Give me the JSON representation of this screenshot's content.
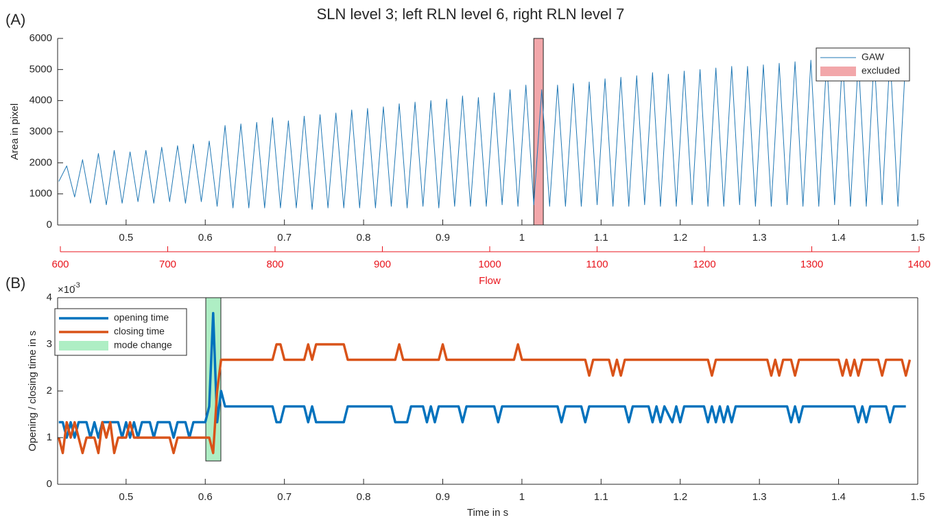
{
  "chart_data": [
    {
      "type": "line",
      "panel_label": "(A)",
      "title": "SLN level 3; left RLN level 6, right RLN level 7",
      "ylabel": "Area in pixel",
      "xlim": [
        0.4135,
        1.5
      ],
      "xticks": [
        0.5,
        0.6,
        0.7,
        0.8,
        0.9,
        1,
        1.1,
        1.2,
        1.3,
        1.4,
        1.5
      ],
      "ylim": [
        0,
        6000
      ],
      "yticks": [
        0,
        1000,
        2000,
        3000,
        4000,
        5000,
        6000
      ],
      "x2label": "Flow",
      "x2lim": [
        600,
        1400
      ],
      "x2ticks": [
        600,
        700,
        800,
        900,
        1000,
        1100,
        1200,
        1300,
        1400
      ],
      "x2color": "#e8141c",
      "legend": "upper right",
      "series": [
        {
          "name": "GAW",
          "color": "#1f77b4",
          "x": [
            0.415,
            0.425,
            0.435,
            0.445,
            0.455,
            0.465,
            0.475,
            0.485,
            0.495,
            0.505,
            0.515,
            0.525,
            0.535,
            0.545,
            0.555,
            0.565,
            0.575,
            0.585,
            0.595,
            0.605,
            0.615,
            0.625,
            0.635,
            0.645,
            0.655,
            0.665,
            0.675,
            0.685,
            0.695,
            0.705,
            0.715,
            0.725,
            0.735,
            0.745,
            0.755,
            0.765,
            0.775,
            0.785,
            0.795,
            0.805,
            0.815,
            0.825,
            0.835,
            0.845,
            0.855,
            0.865,
            0.875,
            0.885,
            0.895,
            0.905,
            0.915,
            0.925,
            0.935,
            0.945,
            0.955,
            0.965,
            0.975,
            0.985,
            0.995,
            1.005,
            1.015,
            1.025,
            1.035,
            1.045,
            1.055,
            1.065,
            1.075,
            1.085,
            1.095,
            1.105,
            1.115,
            1.125,
            1.135,
            1.145,
            1.155,
            1.165,
            1.175,
            1.185,
            1.195,
            1.205,
            1.215,
            1.225,
            1.235,
            1.245,
            1.255,
            1.265,
            1.275,
            1.285,
            1.295,
            1.305,
            1.315,
            1.325,
            1.335,
            1.345,
            1.355,
            1.365,
            1.375,
            1.385,
            1.395,
            1.405,
            1.415,
            1.425,
            1.435,
            1.445,
            1.455,
            1.465,
            1.475,
            1.485
          ],
          "values": [
            1400,
            1900,
            900,
            2100,
            700,
            2300,
            650,
            2400,
            700,
            2350,
            750,
            2400,
            700,
            2500,
            750,
            2550,
            700,
            2600,
            750,
            2700,
            600,
            3200,
            550,
            3250,
            550,
            3300,
            550,
            3450,
            550,
            3350,
            550,
            3500,
            500,
            3550,
            550,
            3600,
            550,
            3700,
            550,
            3750,
            550,
            3800,
            600,
            3900,
            550,
            3950,
            600,
            4000,
            550,
            4050,
            600,
            4150,
            600,
            4100,
            600,
            4250,
            650,
            4350,
            600,
            4500,
            650,
            4350,
            600,
            4500,
            600,
            4550,
            600,
            4600,
            650,
            4700,
            600,
            4750,
            600,
            4800,
            650,
            4900,
            600,
            4850,
            600,
            4950,
            650,
            5000,
            600,
            5050,
            600,
            5100,
            650,
            5100,
            600,
            5150,
            600,
            5200,
            650,
            5250,
            600,
            5300,
            600,
            5350,
            650,
            5400,
            600,
            5350,
            600,
            5450,
            650,
            5500,
            600,
            5500
          ]
        }
      ],
      "shaded_regions": [
        {
          "name": "excluded",
          "color": "#f2a7aa",
          "x": [
            1.015,
            1.027
          ]
        }
      ]
    },
    {
      "type": "line",
      "panel_label": "(B)",
      "xlabel": "Time in s",
      "ylabel": "Opening / closing time in s",
      "y_scale_label": "×10",
      "y_scale_exponent": "-3",
      "xlim": [
        0.4135,
        1.5
      ],
      "xticks": [
        0.5,
        0.6,
        0.7,
        0.8,
        0.9,
        1,
        1.1,
        1.2,
        1.3,
        1.4,
        1.5
      ],
      "ylim": [
        0,
        4
      ],
      "yticks": [
        0,
        1,
        2,
        3,
        4
      ],
      "legend": "upper left",
      "series": [
        {
          "name": "opening time",
          "color": "#0072bd",
          "x": [
            0.415,
            0.42,
            0.425,
            0.43,
            0.435,
            0.44,
            0.45,
            0.455,
            0.46,
            0.465,
            0.47,
            0.49,
            0.495,
            0.5,
            0.505,
            0.51,
            0.515,
            0.52,
            0.53,
            0.535,
            0.54,
            0.555,
            0.56,
            0.565,
            0.575,
            0.58,
            0.585,
            0.6,
            0.605,
            0.61,
            0.615,
            0.62,
            0.625,
            0.685,
            0.69,
            0.695,
            0.7,
            0.725,
            0.73,
            0.735,
            0.74,
            0.775,
            0.78,
            0.835,
            0.84,
            0.855,
            0.86,
            0.875,
            0.88,
            0.885,
            0.89,
            0.895,
            0.92,
            0.925,
            0.93,
            0.965,
            0.97,
            0.975,
            1.045,
            1.05,
            1.055,
            1.075,
            1.08,
            1.085,
            1.13,
            1.135,
            1.14,
            1.16,
            1.165,
            1.17,
            1.175,
            1.18,
            1.19,
            1.195,
            1.2,
            1.205,
            1.23,
            1.235,
            1.24,
            1.245,
            1.25,
            1.255,
            1.26,
            1.265,
            1.27,
            1.335,
            1.34,
            1.345,
            1.35,
            1.355,
            1.42,
            1.425,
            1.43,
            1.435,
            1.44,
            1.46,
            1.465,
            1.47,
            1.485
          ],
          "values": [
            1.33,
            1.33,
            1,
            1.33,
            1,
            1.33,
            1.33,
            1,
            1.33,
            1,
            1.33,
            1.33,
            1,
            1.33,
            1,
            1.33,
            1,
            1.33,
            1.33,
            1,
            1.33,
            1.33,
            1,
            1.33,
            1.33,
            1,
            1.33,
            1.33,
            1.67,
            3.67,
            1.33,
            2,
            1.67,
            1.67,
            1.33,
            1.33,
            1.67,
            1.67,
            1.33,
            1.67,
            1.33,
            1.33,
            1.67,
            1.67,
            1.33,
            1.33,
            1.67,
            1.67,
            1.33,
            1.67,
            1.33,
            1.67,
            1.67,
            1.33,
            1.67,
            1.67,
            1.33,
            1.67,
            1.67,
            1.33,
            1.67,
            1.67,
            1.33,
            1.67,
            1.67,
            1.33,
            1.67,
            1.67,
            1.33,
            1.67,
            1.33,
            1.67,
            1.33,
            1.67,
            1.33,
            1.67,
            1.67,
            1.33,
            1.67,
            1.33,
            1.67,
            1.33,
            1.67,
            1.33,
            1.67,
            1.67,
            1.33,
            1.67,
            1.33,
            1.67,
            1.67,
            1.33,
            1.67,
            1.33,
            1.67,
            1.67,
            1.33,
            1.67,
            1.67
          ]
        },
        {
          "name": "closing time",
          "color": "#d95319",
          "x": [
            0.415,
            0.42,
            0.425,
            0.43,
            0.435,
            0.44,
            0.445,
            0.45,
            0.46,
            0.465,
            0.47,
            0.475,
            0.48,
            0.485,
            0.49,
            0.5,
            0.505,
            0.51,
            0.555,
            0.56,
            0.565,
            0.605,
            0.61,
            0.615,
            0.62,
            0.685,
            0.69,
            0.695,
            0.7,
            0.725,
            0.73,
            0.735,
            0.74,
            0.775,
            0.78,
            0.84,
            0.845,
            0.85,
            0.895,
            0.9,
            0.905,
            0.99,
            0.995,
            1.0,
            1.08,
            1.085,
            1.09,
            1.11,
            1.115,
            1.12,
            1.125,
            1.13,
            1.235,
            1.24,
            1.245,
            1.31,
            1.315,
            1.32,
            1.325,
            1.33,
            1.34,
            1.345,
            1.35,
            1.4,
            1.405,
            1.41,
            1.415,
            1.42,
            1.425,
            1.43,
            1.45,
            1.455,
            1.46,
            1.48,
            1.485,
            1.49
          ],
          "values": [
            1,
            0.67,
            1.33,
            1,
            1.33,
            1,
            0.67,
            1,
            1,
            0.67,
            1.33,
            1,
            1.33,
            0.67,
            1,
            1,
            1.33,
            1,
            1,
            0.67,
            1,
            1,
            0.67,
            2,
            2.67,
            2.67,
            3,
            3,
            2.67,
            2.67,
            3,
            2.67,
            3,
            3,
            2.67,
            2.67,
            3,
            2.67,
            2.67,
            3,
            2.67,
            2.67,
            3,
            2.67,
            2.67,
            2.33,
            2.67,
            2.67,
            2.33,
            2.67,
            2.33,
            2.67,
            2.67,
            2.33,
            2.67,
            2.67,
            2.33,
            2.67,
            2.33,
            2.67,
            2.67,
            2.33,
            2.67,
            2.67,
            2.33,
            2.67,
            2.33,
            2.67,
            2.33,
            2.67,
            2.67,
            2.33,
            2.67,
            2.67,
            2.33,
            2.67
          ]
        }
      ],
      "shaded_regions": [
        {
          "name": "mode change",
          "color": "#aeeec4",
          "x": [
            0.6007,
            0.6197
          ],
          "y": [
            0.5,
            4
          ]
        }
      ]
    }
  ]
}
